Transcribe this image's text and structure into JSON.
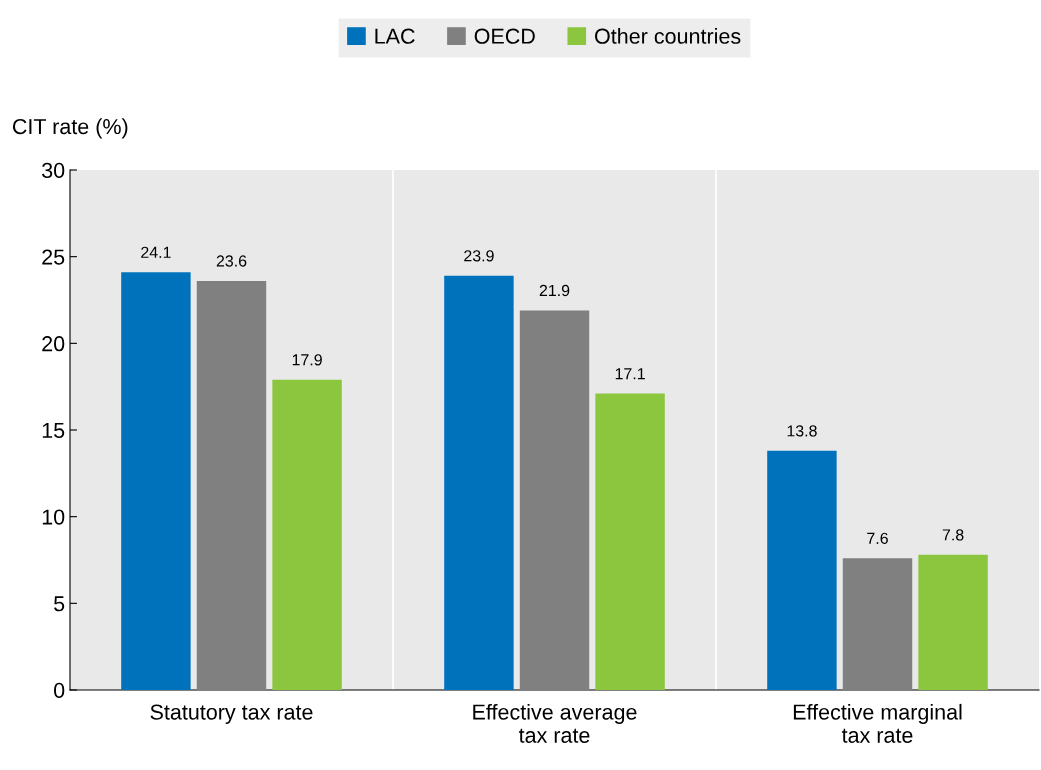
{
  "chart_data": {
    "type": "bar",
    "ylabel": "CIT rate (%)",
    "categories": [
      "Statutory tax rate",
      "Effective average\ntax rate",
      "Effective marginal\ntax rate"
    ],
    "series": [
      {
        "name": "LAC",
        "color": "#0072bc",
        "values": [
          24.1,
          23.9,
          13.8
        ]
      },
      {
        "name": "OECD",
        "color": "#808080",
        "values": [
          23.6,
          21.9,
          7.6
        ]
      },
      {
        "name": "Other countries",
        "color": "#8cc63f",
        "values": [
          17.9,
          17.1,
          7.8
        ]
      }
    ],
    "ylim": [
      0,
      30
    ],
    "yticks": [
      0,
      5,
      10,
      15,
      20,
      25,
      30
    ],
    "grid": false,
    "legend": "top",
    "data_labels": true
  }
}
